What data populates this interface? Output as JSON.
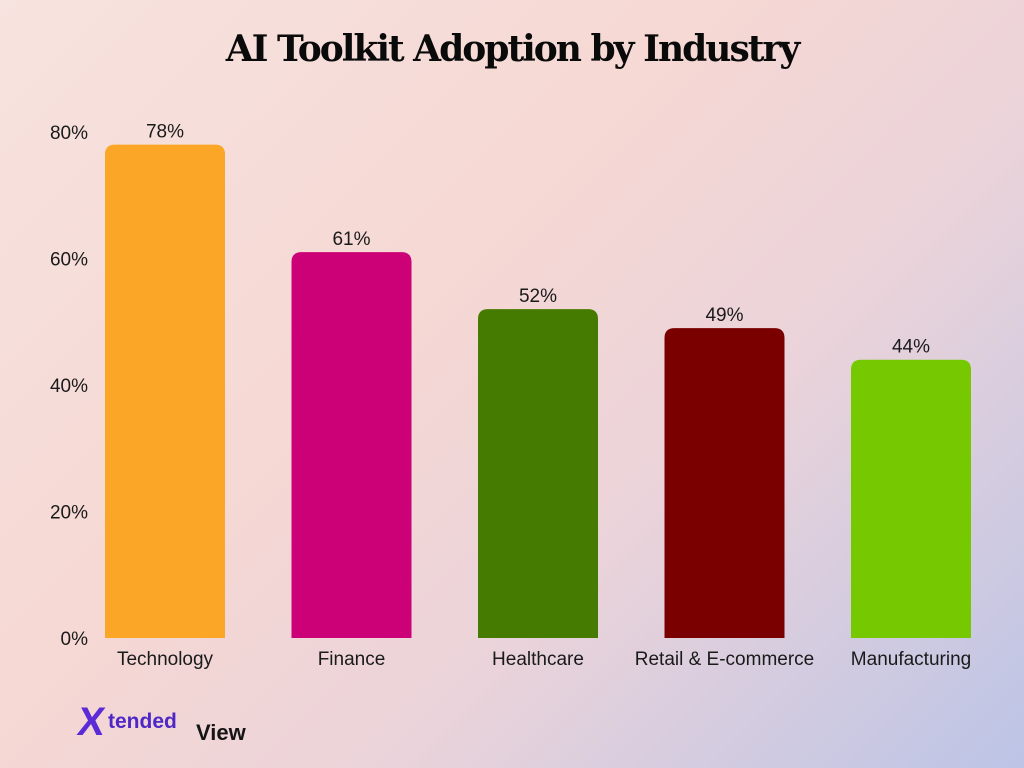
{
  "chart_data": {
    "type": "bar",
    "title": "AI Toolkit Adoption by Industry",
    "categories": [
      "Technology",
      "Finance",
      "Healthcare",
      "Retail & E-commerce",
      "Manufacturing"
    ],
    "values": [
      78,
      61,
      52,
      49,
      44
    ],
    "value_labels": [
      "78%",
      "61%",
      "52%",
      "49%",
      "44%"
    ],
    "colors": [
      "#fba626",
      "#cc0077",
      "#457b00",
      "#7a0000",
      "#76c900"
    ],
    "ylim": [
      0,
      80
    ],
    "yticks": [
      0,
      20,
      40,
      60,
      80
    ],
    "ytick_labels": [
      "0%",
      "20%",
      "40%",
      "60%",
      "80%"
    ],
    "xlabel": "",
    "ylabel": "",
    "grid": false,
    "legend": "none"
  },
  "logo": {
    "x": "X",
    "tended": "tended",
    "view": "View",
    "colors": {
      "primary": "#5b2bd6",
      "dark": "#151515"
    }
  }
}
